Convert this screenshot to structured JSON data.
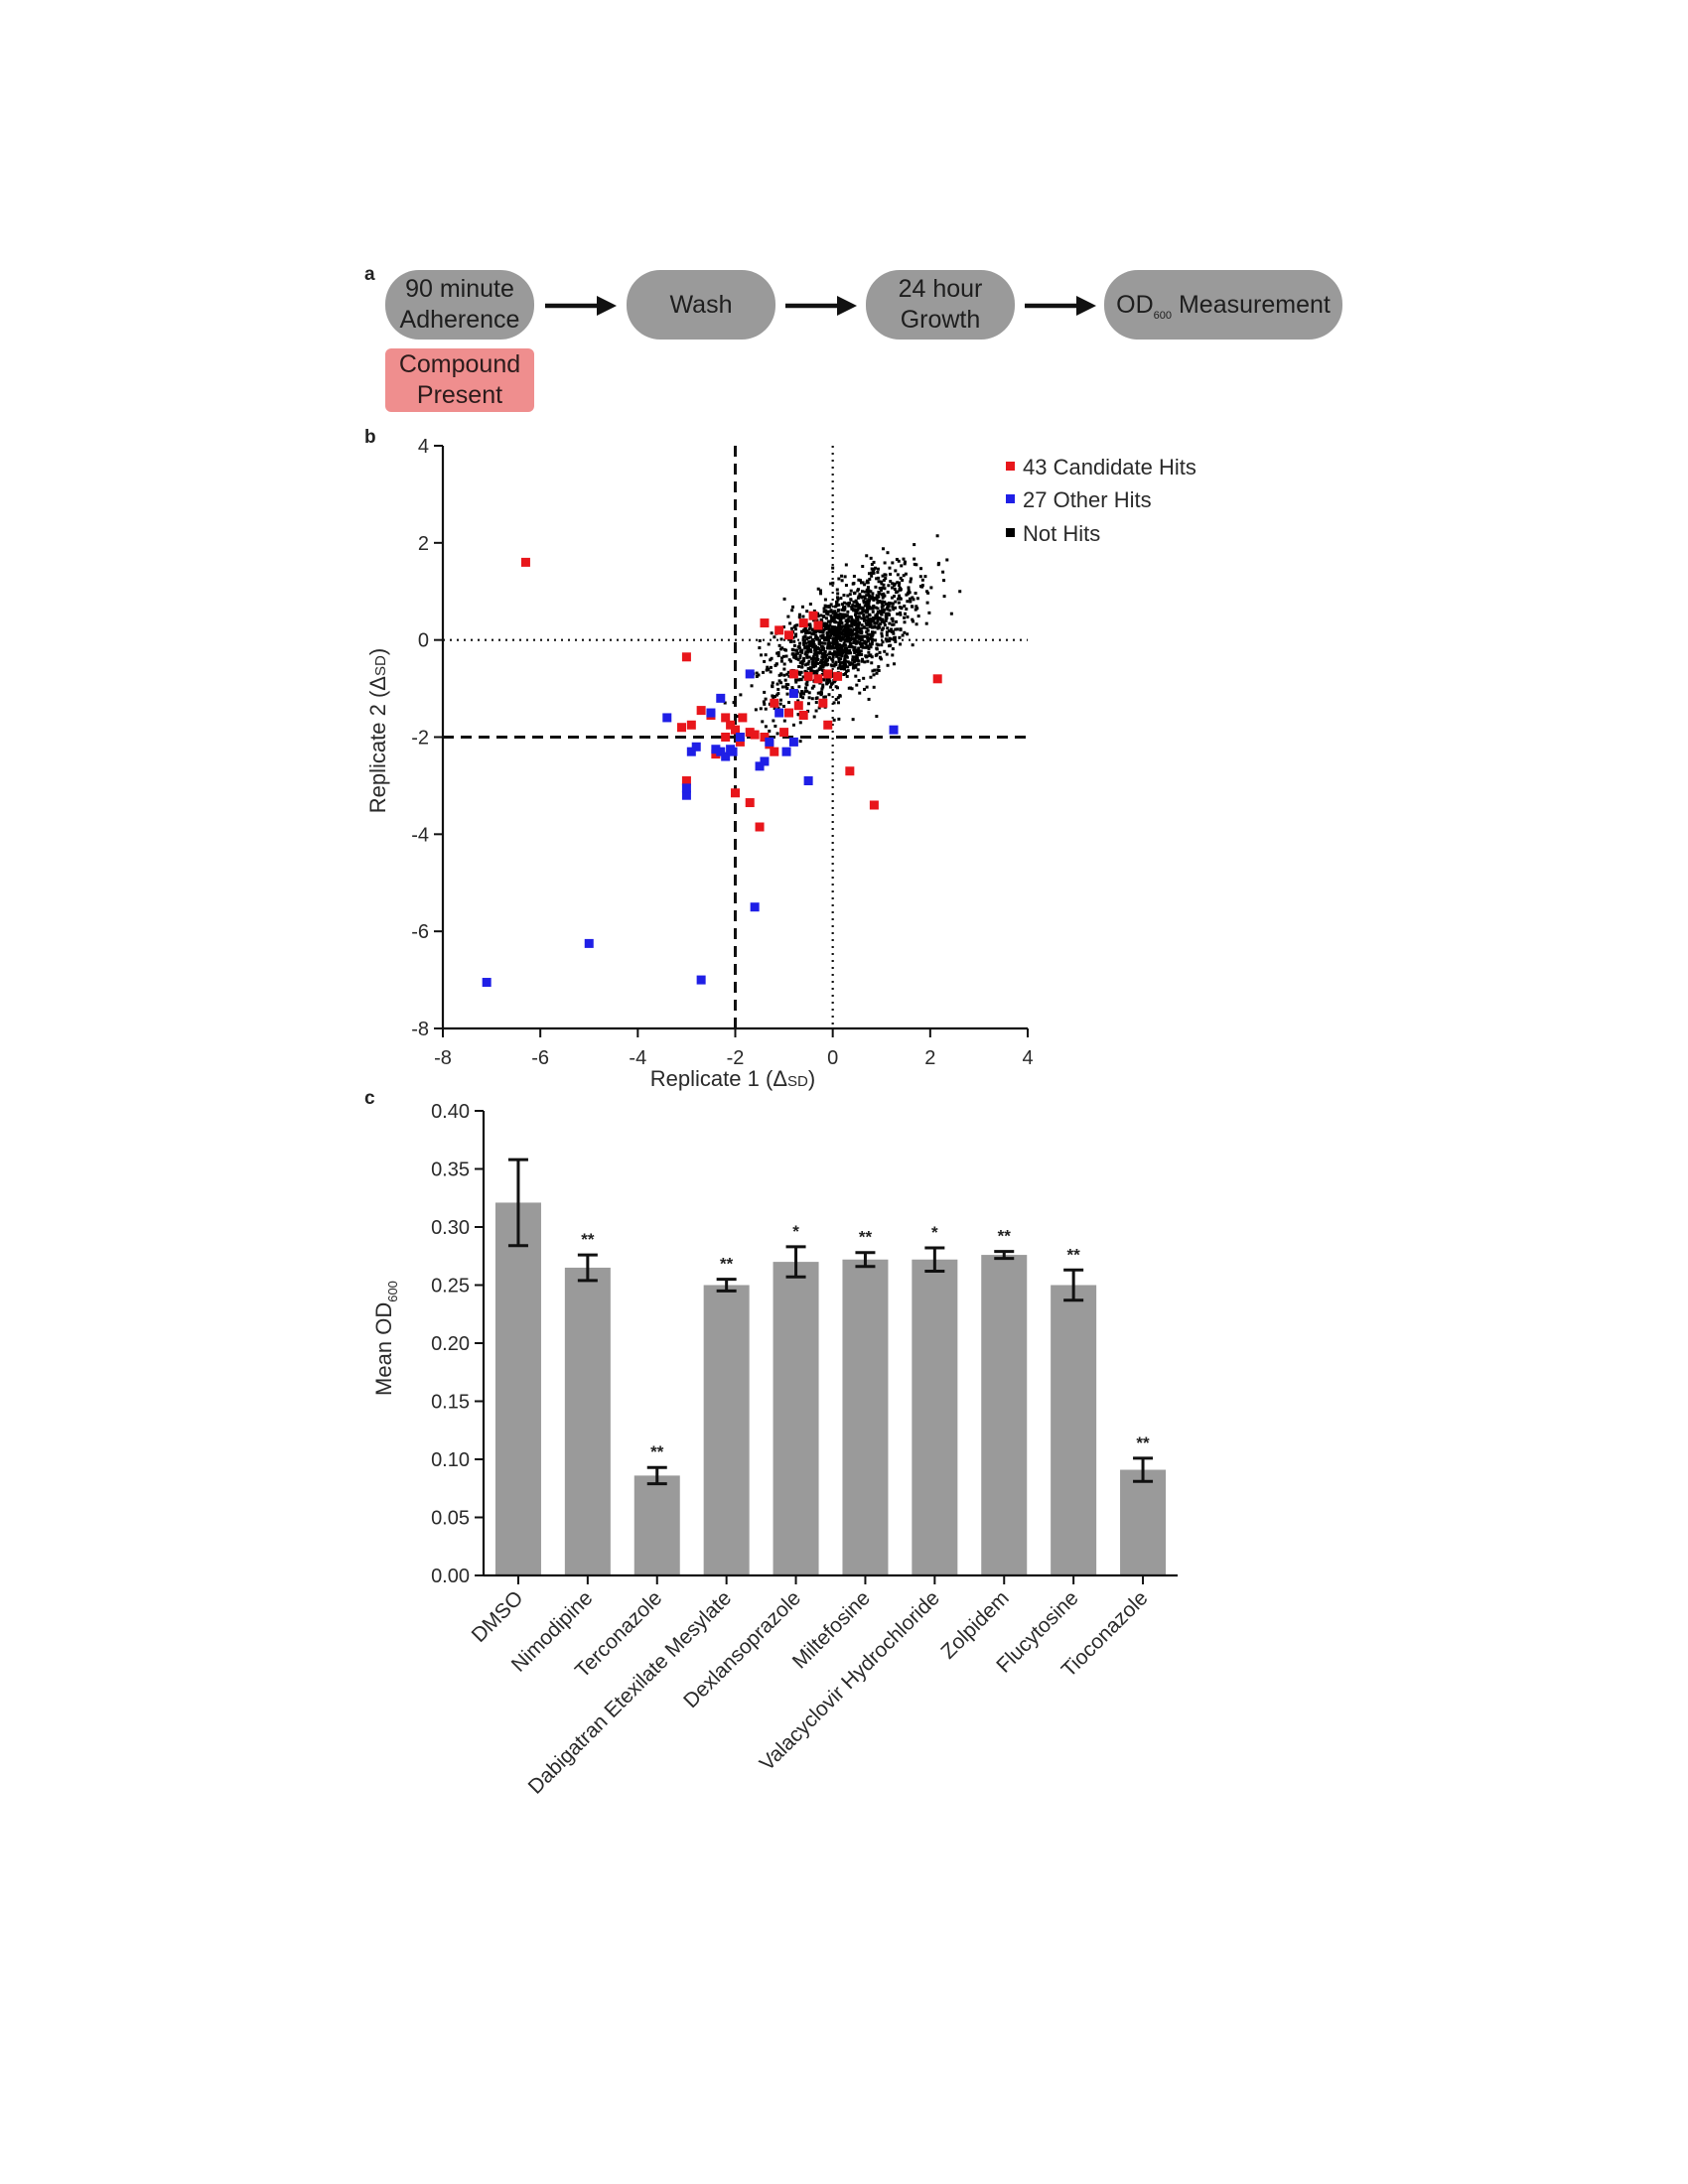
{
  "panel_a": {
    "letter": "a",
    "steps": [
      {
        "line1": "90 minute",
        "line2": "Adherence"
      },
      {
        "line1": "Wash",
        "line2": ""
      },
      {
        "line1": "24 hour",
        "line2": "Growth"
      },
      {
        "line1": "OD",
        "sub": "600",
        "line2": " Measurement"
      }
    ],
    "compound": {
      "line1": "Compound",
      "line2": "Present"
    },
    "colors": {
      "box": "#9a9a9a",
      "compound": "#ef8e8e"
    }
  },
  "chart_data": [
    {
      "panel_letter": "b",
      "type": "scatter",
      "xlabel_main": "Replicate 1 (",
      "xlabel_delta": "Δ",
      "xlabel_unit": "SD",
      "xlabel_end": ")",
      "ylabel_main": "Replicate 2 (",
      "ylabel_delta": "Δ",
      "ylabel_unit": "SD",
      "ylabel_end": ")",
      "xlim": [
        -8,
        4
      ],
      "ylim": [
        -8,
        4
      ],
      "xticks": [
        -8,
        -6,
        -4,
        -2,
        0,
        2,
        4
      ],
      "yticks": [
        -8,
        -6,
        -4,
        -2,
        0,
        2,
        4
      ],
      "threshold_lines": {
        "dashed_x": -2,
        "dashed_y": -2,
        "dotted_x": 0,
        "dotted_y": 0
      },
      "legend_position": "top-right",
      "series": [
        {
          "name": "43 Candidate Hits",
          "color": "#e8161b",
          "points": [
            [
              -6.3,
              1.6
            ],
            [
              -3.0,
              -0.35
            ],
            [
              -3.1,
              -1.8
            ],
            [
              -2.9,
              -1.75
            ],
            [
              -2.7,
              -1.45
            ],
            [
              -2.5,
              -1.55
            ],
            [
              -2.2,
              -1.6
            ],
            [
              -2.1,
              -1.75
            ],
            [
              -2.0,
              -1.85
            ],
            [
              -1.85,
              -1.6
            ],
            [
              -1.7,
              -1.9
            ],
            [
              -1.6,
              -1.95
            ],
            [
              -1.4,
              -2.0
            ],
            [
              -1.3,
              -2.15
            ],
            [
              -1.2,
              -2.3
            ],
            [
              -1.0,
              -1.9
            ],
            [
              -0.9,
              -1.5
            ],
            [
              -0.7,
              -1.35
            ],
            [
              -0.6,
              -1.55
            ],
            [
              -0.5,
              -0.75
            ],
            [
              -0.3,
              -0.8
            ],
            [
              -0.1,
              -0.7
            ],
            [
              -0.3,
              0.3
            ],
            [
              -0.6,
              0.35
            ],
            [
              -0.4,
              0.5
            ],
            [
              -1.4,
              0.35
            ],
            [
              -0.9,
              0.1
            ],
            [
              -0.2,
              -1.3
            ],
            [
              -0.1,
              -1.75
            ],
            [
              0.35,
              -2.7
            ],
            [
              0.85,
              -3.4
            ],
            [
              2.15,
              -0.8
            ],
            [
              -2.0,
              -3.15
            ],
            [
              -1.7,
              -3.35
            ],
            [
              -1.5,
              -3.85
            ],
            [
              -3.0,
              -2.9
            ],
            [
              -2.4,
              -2.35
            ],
            [
              -2.2,
              -2.0
            ],
            [
              -1.9,
              -2.1
            ],
            [
              -1.2,
              -1.3
            ],
            [
              -0.8,
              -0.7
            ],
            [
              0.1,
              -0.75
            ],
            [
              -1.1,
              0.2
            ]
          ]
        },
        {
          "name": "27 Other Hits",
          "color": "#1f1fe6",
          "points": [
            [
              -7.1,
              -7.05
            ],
            [
              -5.0,
              -6.25
            ],
            [
              -2.7,
              -7.0
            ],
            [
              -1.6,
              -5.5
            ],
            [
              -3.0,
              -3.2
            ],
            [
              -3.0,
              -3.05
            ],
            [
              -2.9,
              -2.3
            ],
            [
              -2.4,
              -2.25
            ],
            [
              -2.3,
              -2.3
            ],
            [
              -2.2,
              -2.4
            ],
            [
              -2.1,
              -2.25
            ],
            [
              -2.05,
              -2.3
            ],
            [
              -1.5,
              -2.6
            ],
            [
              -1.4,
              -2.5
            ],
            [
              -1.3,
              -2.1
            ],
            [
              -0.8,
              -2.1
            ],
            [
              -0.5,
              -2.9
            ],
            [
              -3.4,
              -1.6
            ],
            [
              -2.5,
              -1.5
            ],
            [
              -2.3,
              -1.2
            ],
            [
              -1.7,
              -0.7
            ],
            [
              -0.8,
              -1.1
            ],
            [
              1.25,
              -1.85
            ],
            [
              -1.1,
              -1.5
            ],
            [
              -2.8,
              -2.2
            ],
            [
              -0.95,
              -2.3
            ],
            [
              -1.9,
              -2.0
            ]
          ]
        },
        {
          "name": "Not Hits",
          "color": "#000000",
          "cloud": {
            "count": 1500,
            "center": [
              0.2,
              0.05
            ],
            "sd_major": 0.9,
            "sd_minor": 0.42,
            "slope": 0.85
          }
        }
      ]
    },
    {
      "panel_letter": "c",
      "type": "bar",
      "ylabel_main": "Mean OD",
      "ylabel_sub": "600",
      "ylim": [
        0,
        0.4
      ],
      "yticks": [
        "0.00",
        "0.05",
        "0.10",
        "0.15",
        "0.20",
        "0.25",
        "0.30",
        "0.35",
        "0.40"
      ],
      "bar_color": "#9a9a9a",
      "categories": [
        "DMSO",
        "Nimodipine",
        "Terconazole",
        "Dabigatran Etexilate Mesylate",
        "Dexlansoprazole",
        "Miltefosine",
        "Valacyclovir Hydrochloride",
        "Zolpidem",
        "Flucytosine",
        "Tioconazole"
      ],
      "values": [
        0.321,
        0.265,
        0.086,
        0.25,
        0.27,
        0.272,
        0.272,
        0.276,
        0.25,
        0.091
      ],
      "errors": [
        0.037,
        0.011,
        0.007,
        0.005,
        0.013,
        0.006,
        0.01,
        0.003,
        0.013,
        0.01
      ],
      "significance": [
        "",
        "**",
        "**",
        "**",
        "*",
        "**",
        "*",
        "**",
        "**",
        "**"
      ]
    }
  ]
}
